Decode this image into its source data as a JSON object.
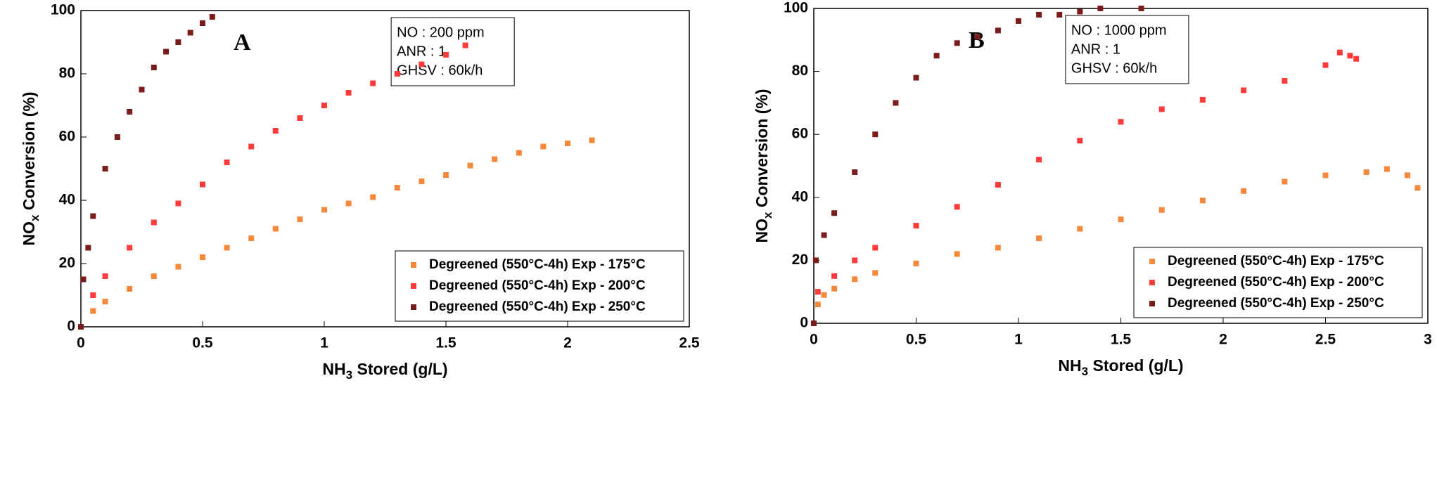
{
  "chart_data": [
    {
      "type": "scatter",
      "label": "A",
      "xlabel": {
        "main": "NH",
        "sub": "3",
        "rest": " Stored (g/L)"
      },
      "ylabel": {
        "main": "NO",
        "sub": "x",
        "rest": " Conversion (%)"
      },
      "annotations": [
        "NO : 200 ppm",
        "ANR : 1",
        "GHSV : 60k/h"
      ],
      "xlim": [
        0,
        2.5
      ],
      "xticks": [
        0,
        0.5,
        1,
        1.5,
        2,
        2.5
      ],
      "ylim": [
        0,
        100
      ],
      "yticks": [
        0,
        20,
        40,
        60,
        80,
        100
      ],
      "legend": "lower right",
      "series": [
        {
          "name": "Degreened (550°C-4h) Exp - 175°C",
          "color": "#f5883a",
          "x": [
            0,
            0.05,
            0.1,
            0.2,
            0.3,
            0.4,
            0.5,
            0.6,
            0.7,
            0.8,
            0.9,
            1.0,
            1.1,
            1.2,
            1.3,
            1.4,
            1.5,
            1.6,
            1.7,
            1.8,
            1.9,
            2.0,
            2.1
          ],
          "values": [
            0,
            5,
            8,
            12,
            16,
            19,
            22,
            25,
            28,
            31,
            34,
            37,
            39,
            41,
            44,
            46,
            48,
            51,
            53,
            55,
            57,
            58,
            59
          ]
        },
        {
          "name": "Degreened (550°C-4h) Exp - 200°C",
          "color": "#ff3a3a",
          "x": [
            0,
            0.05,
            0.1,
            0.2,
            0.3,
            0.4,
            0.5,
            0.6,
            0.7,
            0.8,
            0.9,
            1.0,
            1.1,
            1.2,
            1.3,
            1.4,
            1.5,
            1.58
          ],
          "values": [
            0,
            10,
            16,
            25,
            33,
            39,
            45,
            52,
            57,
            62,
            66,
            70,
            74,
            77,
            80,
            83,
            86,
            89
          ]
        },
        {
          "name": "Degreened (550°C-4h) Exp - 250°C",
          "color": "#7a1c1c",
          "x": [
            0,
            0.01,
            0.03,
            0.05,
            0.1,
            0.15,
            0.2,
            0.25,
            0.3,
            0.35,
            0.4,
            0.45,
            0.5,
            0.54
          ],
          "values": [
            0,
            15,
            25,
            35,
            50,
            60,
            68,
            75,
            82,
            87,
            90,
            93,
            96,
            98
          ]
        }
      ]
    },
    {
      "type": "scatter",
      "label": "B",
      "xlabel": {
        "main": "NH",
        "sub": "3",
        "rest": " Stored (g/L)"
      },
      "ylabel": {
        "main": "NO",
        "sub": "x",
        "rest": " Conversion (%)"
      },
      "annotations": [
        "NO : 1000 ppm",
        "ANR : 1",
        "GHSV : 60k/h"
      ],
      "xlim": [
        0,
        3
      ],
      "xticks": [
        0,
        0.5,
        1,
        1.5,
        2,
        2.5,
        3
      ],
      "ylim": [
        0,
        100
      ],
      "yticks": [
        0,
        20,
        40,
        60,
        80,
        100
      ],
      "legend": "lower right",
      "series": [
        {
          "name": "Degreened (550°C-4h) Exp - 175°C",
          "color": "#f5883a",
          "x": [
            0,
            0.02,
            0.05,
            0.1,
            0.2,
            0.3,
            0.5,
            0.7,
            0.9,
            1.1,
            1.3,
            1.5,
            1.7,
            1.9,
            2.1,
            2.3,
            2.5,
            2.7,
            2.8,
            2.9,
            2.95
          ],
          "values": [
            0,
            6,
            9,
            11,
            14,
            16,
            19,
            22,
            24,
            27,
            30,
            33,
            36,
            39,
            42,
            45,
            47,
            48,
            49,
            47,
            43
          ]
        },
        {
          "name": "Degreened (550°C-4h) Exp - 200°C",
          "color": "#ff3a3a",
          "x": [
            0,
            0.02,
            0.1,
            0.2,
            0.3,
            0.5,
            0.7,
            0.9,
            1.1,
            1.3,
            1.5,
            1.7,
            1.9,
            2.1,
            2.3,
            2.5,
            2.57,
            2.62,
            2.65
          ],
          "values": [
            0,
            10,
            15,
            20,
            24,
            31,
            37,
            44,
            52,
            58,
            64,
            68,
            71,
            74,
            77,
            82,
            86,
            85,
            84
          ]
        },
        {
          "name": "Degreened (550°C-4h) Exp - 250°C",
          "color": "#7a1c1c",
          "x": [
            0,
            0.01,
            0.05,
            0.1,
            0.2,
            0.3,
            0.4,
            0.5,
            0.6,
            0.7,
            0.8,
            0.9,
            1.0,
            1.1,
            1.2,
            1.3,
            1.4,
            1.6
          ],
          "values": [
            0,
            20,
            28,
            35,
            48,
            60,
            70,
            78,
            85,
            89,
            91,
            93,
            96,
            98,
            98,
            99,
            100,
            100
          ]
        }
      ]
    }
  ]
}
